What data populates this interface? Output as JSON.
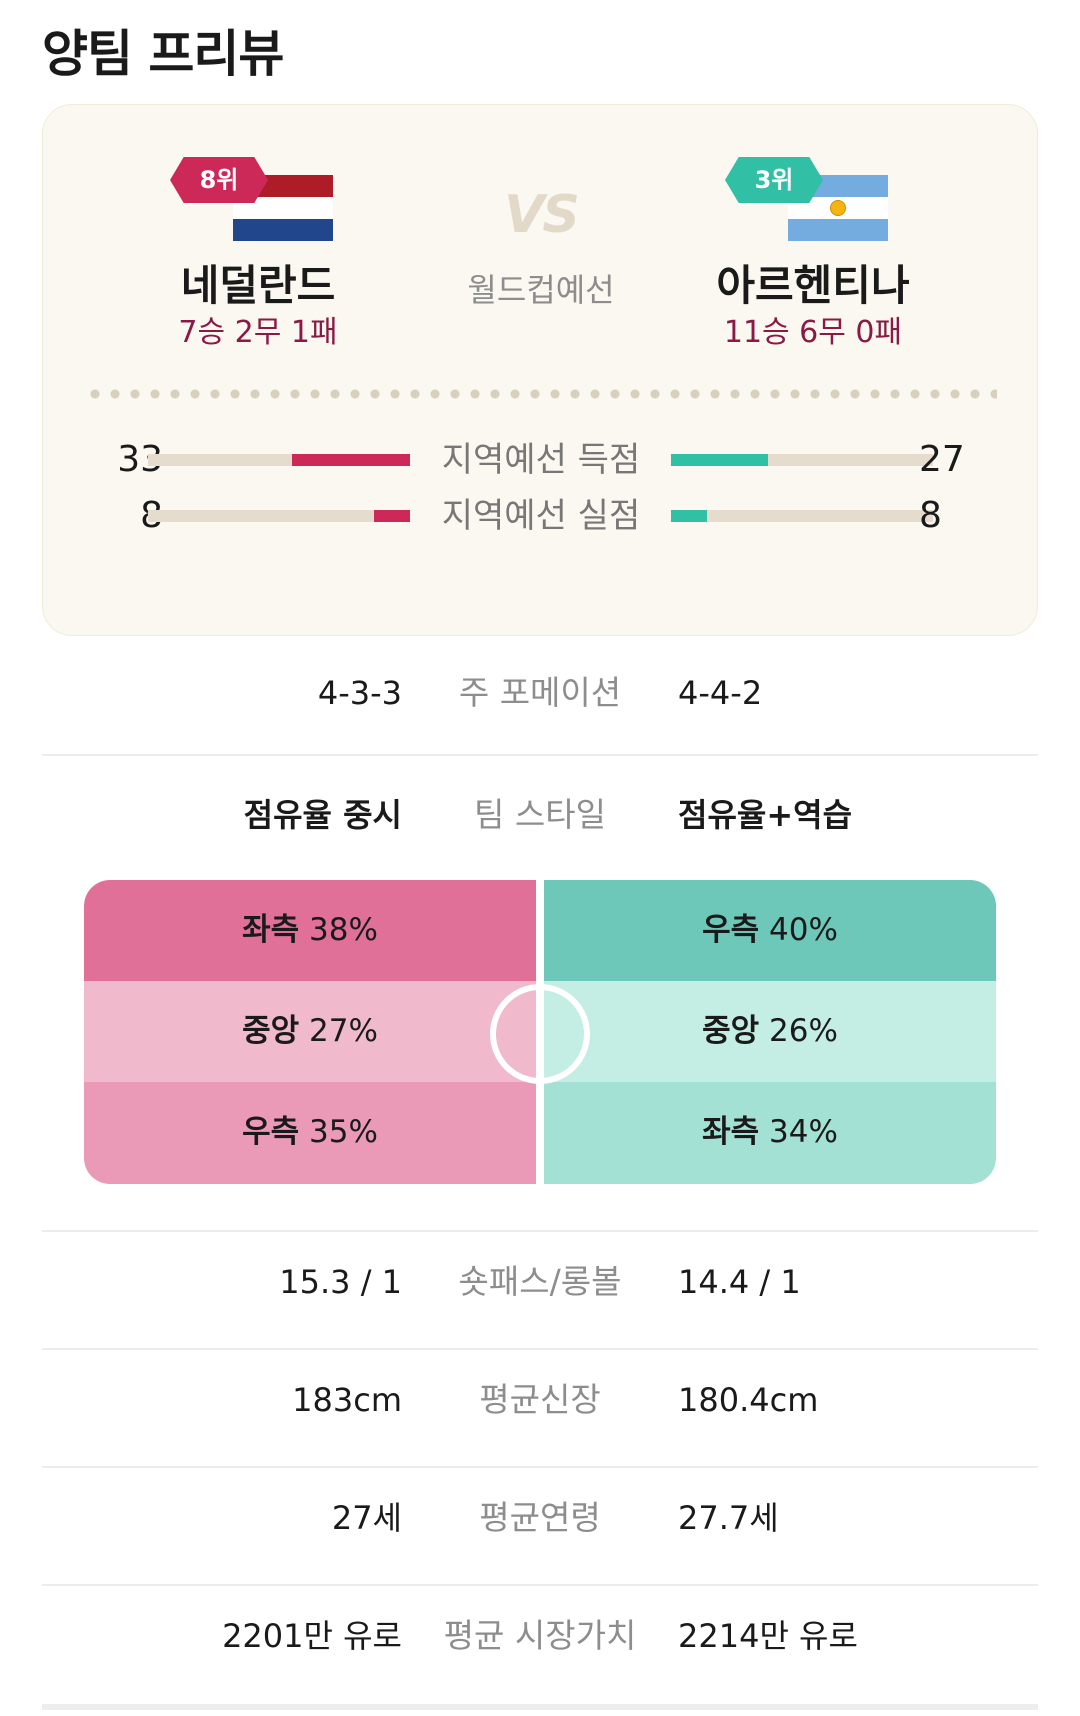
{
  "page_title": "양팀 프리뷰",
  "match": {
    "vs_label": "VS",
    "competition": "월드컵예선",
    "home": {
      "rank": "8위",
      "flag": "netherlands-flag",
      "name": "네덜란드",
      "record": "7승 2무 1패",
      "color": "#cc2958"
    },
    "away": {
      "rank": "3위",
      "flag": "argentina-flag",
      "name": "아르헨티나",
      "record": "11승 6무 0패",
      "color": "#31bfa5"
    }
  },
  "qualifier_stats": [
    {
      "label": "지역예선 득점",
      "home": "33",
      "away": "27",
      "home_value": 33,
      "away_value": 27,
      "scale_max": 73
    },
    {
      "label": "지역예선 실점",
      "home": "8",
      "away": "8",
      "home_value": 8,
      "away_value": 8,
      "scale_max": 59
    }
  ],
  "formation": {
    "label": "주 포메이션",
    "home": "4-3-3",
    "away": "4-4-2"
  },
  "team_style": {
    "label": "팀 스타일",
    "home": "점유율 중시",
    "away": "점유율+역습"
  },
  "attack_zones": {
    "home": [
      {
        "zone": "좌측",
        "value": "38%"
      },
      {
        "zone": "중앙",
        "value": "27%"
      },
      {
        "zone": "우측",
        "value": "35%"
      }
    ],
    "away": [
      {
        "zone": "우측",
        "value": "40%"
      },
      {
        "zone": "중앙",
        "value": "26%"
      },
      {
        "zone": "좌측",
        "value": "34%"
      }
    ]
  },
  "extra_stats": [
    {
      "label": "숏패스/롱볼",
      "home": "15.3 / 1",
      "away": "14.4 / 1"
    },
    {
      "label": "평균신장",
      "home": "183cm",
      "away": "180.4cm"
    },
    {
      "label": "평균연령",
      "home": "27세",
      "away": "27.7세"
    },
    {
      "label": "평균 시장가치",
      "home": "2201만 유로",
      "away": "2214만 유로"
    }
  ]
}
